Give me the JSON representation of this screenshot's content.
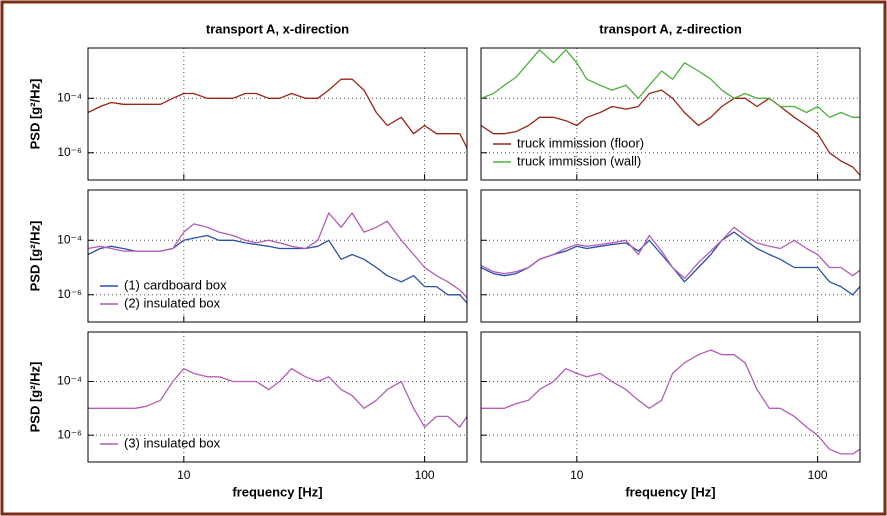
{
  "chart_data": [
    {
      "type": "line",
      "title": "transport A, x-direction",
      "ylabel": "PSD [g²/Hz]",
      "log": true,
      "grid": true,
      "x": [
        4,
        4.5,
        5,
        5.6,
        6.3,
        7,
        8,
        9,
        10,
        11,
        12.5,
        14,
        16,
        18,
        20,
        22.5,
        25,
        28,
        32,
        36,
        40,
        45,
        50,
        56,
        63,
        70,
        80,
        90,
        100,
        112,
        125,
        140,
        150
      ],
      "series": [
        {
          "color": "#9b2418",
          "values": [
            3e-05,
            5e-05,
            7e-05,
            6e-05,
            6e-05,
            6e-05,
            6e-05,
            0.0001,
            0.00015,
            0.00015,
            0.0001,
            0.0001,
            0.0001,
            0.00015,
            0.00015,
            0.0001,
            0.0001,
            0.00015,
            0.0001,
            0.0001,
            0.0002,
            0.0005,
            0.0005,
            0.0002,
            3e-05,
            1e-05,
            2e-05,
            5e-06,
            1e-05,
            5e-06,
            5e-06,
            5e-06,
            1.5e-06
          ]
        }
      ],
      "xlim": [
        4,
        150
      ],
      "ylim": [
        1e-07,
        0.007
      ],
      "xticks": [
        10,
        100
      ],
      "yticks": [
        {
          "value": 0.0001,
          "label": "10⁻⁴"
        },
        {
          "value": 1e-06,
          "label": "10⁻⁶"
        }
      ]
    },
    {
      "type": "line",
      "title": "transport A, z-direction",
      "log": true,
      "grid": true,
      "legend": "lower left",
      "x": [
        4,
        4.5,
        5,
        5.6,
        6.3,
        7,
        8,
        9,
        10,
        11,
        12.5,
        14,
        16,
        18,
        20,
        22.5,
        25,
        28,
        32,
        36,
        40,
        45,
        50,
        56,
        63,
        70,
        80,
        90,
        100,
        112,
        125,
        140,
        150
      ],
      "series": [
        {
          "name": "truck immission (floor)",
          "color": "#9b2418",
          "values": [
            1e-05,
            5e-06,
            5e-06,
            6e-06,
            1e-05,
            2e-05,
            2e-05,
            1.5e-05,
            1e-05,
            2e-05,
            3e-05,
            5e-05,
            4e-05,
            5e-05,
            0.00015,
            0.0002,
            0.0001,
            3e-05,
            1e-05,
            2e-05,
            5e-05,
            0.0001,
            0.0001,
            5e-05,
            0.0001,
            5e-05,
            2e-05,
            1e-05,
            5e-06,
            1e-06,
            5e-07,
            3e-07,
            1.5e-07
          ]
        },
        {
          "name": "truck immission (wall)",
          "color": "#4caf3a",
          "values": [
            0.0001,
            0.00015,
            0.0003,
            0.0006,
            0.002,
            0.006,
            0.002,
            0.006,
            0.002,
            0.0005,
            0.0003,
            0.0002,
            0.0003,
            0.0001,
            0.0003,
            0.001,
            0.0005,
            0.002,
            0.001,
            0.0005,
            0.0002,
            0.0001,
            0.00015,
            0.0001,
            0.0001,
            5e-05,
            5e-05,
            3e-05,
            5e-05,
            2e-05,
            3e-05,
            2e-05,
            2e-05
          ]
        }
      ],
      "xlim": [
        4,
        150
      ],
      "ylim": [
        1e-07,
        0.007
      ],
      "xticks": [
        10,
        100
      ],
      "yticks": [
        0.0001,
        1e-06
      ]
    },
    {
      "type": "line",
      "ylabel": "PSD [g²/Hz]",
      "log": true,
      "grid": true,
      "legend": "lower left",
      "x": [
        4,
        4.5,
        5,
        5.6,
        6.3,
        7,
        8,
        9,
        10,
        11,
        12.5,
        14,
        16,
        18,
        20,
        22.5,
        25,
        28,
        32,
        36,
        40,
        45,
        50,
        56,
        63,
        70,
        80,
        90,
        100,
        112,
        125,
        140,
        150
      ],
      "series": [
        {
          "name": "(1) cardboard box",
          "color": "#2a4fa8",
          "values": [
            3e-05,
            5e-05,
            6e-05,
            5e-05,
            4e-05,
            4e-05,
            4e-05,
            5e-05,
            0.0001,
            0.00012,
            0.00015,
            0.0001,
            0.0001,
            8e-05,
            7e-05,
            6e-05,
            5e-05,
            5e-05,
            5e-05,
            6e-05,
            0.0001,
            2e-05,
            3e-05,
            2e-05,
            1e-05,
            5e-06,
            3e-06,
            5e-06,
            2e-06,
            2e-06,
            1e-06,
            1e-06,
            5e-07
          ]
        },
        {
          "name": "(2) insulated box",
          "color": "#b45cb6",
          "values": [
            5e-05,
            6e-05,
            5e-05,
            4e-05,
            4e-05,
            4e-05,
            4e-05,
            5e-05,
            0.0002,
            0.0004,
            0.0003,
            0.0002,
            0.00015,
            0.0001,
            8e-05,
            0.0001,
            8e-05,
            6e-05,
            5e-05,
            0.0001,
            0.001,
            0.0003,
            0.001,
            0.0002,
            0.0003,
            0.0005,
            0.0001,
            3e-05,
            1e-05,
            5e-06,
            3e-06,
            1.5e-06,
            8e-07
          ]
        }
      ],
      "xlim": [
        4,
        150
      ],
      "ylim": [
        1e-07,
        0.007
      ],
      "xticks": [
        10,
        100
      ],
      "yticks": [
        {
          "value": 0.0001,
          "label": "10⁻⁴"
        },
        {
          "value": 1e-06,
          "label": "10⁻⁶"
        }
      ]
    },
    {
      "type": "line",
      "log": true,
      "grid": true,
      "x": [
        4,
        4.5,
        5,
        5.6,
        6.3,
        7,
        8,
        9,
        10,
        11,
        12.5,
        14,
        16,
        18,
        20,
        22.5,
        25,
        28,
        32,
        36,
        40,
        45,
        50,
        56,
        63,
        70,
        80,
        90,
        100,
        112,
        125,
        140,
        150
      ],
      "series": [
        {
          "color": "#2a4fa8",
          "values": [
            1e-05,
            6e-06,
            5e-06,
            6e-06,
            1e-05,
            2e-05,
            3e-05,
            4e-05,
            6e-05,
            5e-05,
            6e-05,
            7e-05,
            8e-05,
            4e-05,
            0.0001,
            3e-05,
            1e-05,
            3e-06,
            1e-05,
            3e-05,
            0.0001,
            0.0002,
            0.0001,
            5e-05,
            3e-05,
            2e-05,
            1e-05,
            1e-05,
            1e-05,
            3e-06,
            2e-06,
            1e-06,
            2e-06
          ]
        },
        {
          "color": "#b45cb6",
          "values": [
            1.2e-05,
            7e-06,
            6e-06,
            7e-06,
            1e-05,
            2e-05,
            3e-05,
            5e-05,
            7e-05,
            6e-05,
            7e-05,
            8e-05,
            0.0001,
            3e-05,
            0.00015,
            4e-05,
            1e-05,
            4e-06,
            1.5e-05,
            4e-05,
            0.0001,
            0.0003,
            0.00015,
            8e-05,
            6e-05,
            5e-05,
            0.0001,
            5e-05,
            3e-05,
            1e-05,
            1e-05,
            5e-06,
            8e-06
          ]
        }
      ],
      "xlim": [
        4,
        150
      ],
      "ylim": [
        1e-07,
        0.007
      ],
      "xticks": [
        10,
        100
      ],
      "yticks": [
        0.0001,
        1e-06
      ]
    },
    {
      "type": "line",
      "ylabel": "PSD [g²/Hz]",
      "xlabel": "frequency [Hz]",
      "log": true,
      "grid": true,
      "legend": "lower left",
      "x": [
        4,
        4.5,
        5,
        5.6,
        6.3,
        7,
        8,
        9,
        10,
        11,
        12.5,
        14,
        16,
        18,
        20,
        22.5,
        25,
        28,
        32,
        36,
        40,
        45,
        50,
        56,
        63,
        70,
        80,
        90,
        100,
        112,
        125,
        140,
        150
      ],
      "series": [
        {
          "name": "(3) insulated box",
          "color": "#b45cb6",
          "values": [
            1e-05,
            1e-05,
            1e-05,
            1e-05,
            1e-05,
            1.2e-05,
            2e-05,
            0.0001,
            0.0003,
            0.0002,
            0.00015,
            0.00015,
            0.0001,
            0.0001,
            0.0001,
            5e-05,
            0.0001,
            0.0003,
            0.00015,
            0.0001,
            0.00015,
            5e-05,
            3e-05,
            1e-05,
            2e-05,
            5e-05,
            0.0001,
            1e-05,
            2e-06,
            5e-06,
            5e-06,
            2e-06,
            5e-06
          ]
        }
      ],
      "xlim": [
        4,
        150
      ],
      "ylim": [
        1e-07,
        0.007
      ],
      "xticks": [
        10,
        100
      ],
      "yticks": [
        {
          "value": 0.0001,
          "label": "10⁻⁴"
        },
        {
          "value": 1e-06,
          "label": "10⁻⁶"
        }
      ]
    },
    {
      "type": "line",
      "xlabel": "frequency [Hz]",
      "log": true,
      "grid": true,
      "x": [
        4,
        4.5,
        5,
        5.6,
        6.3,
        7,
        8,
        9,
        10,
        11,
        12.5,
        14,
        16,
        18,
        20,
        22.5,
        25,
        28,
        32,
        36,
        40,
        45,
        50,
        56,
        63,
        70,
        80,
        90,
        100,
        112,
        125,
        140,
        150
      ],
      "series": [
        {
          "color": "#b45cb6",
          "values": [
            1e-05,
            1e-05,
            1e-05,
            1.5e-05,
            2e-05,
            5e-05,
            0.0001,
            0.0003,
            0.0002,
            0.00015,
            0.0002,
            0.0001,
            5e-05,
            2e-05,
            1e-05,
            2e-05,
            0.0002,
            0.0005,
            0.001,
            0.0015,
            0.001,
            0.001,
            0.0005,
            5e-05,
            1e-05,
            1e-05,
            5e-06,
            2e-06,
            1e-06,
            3e-07,
            2e-07,
            2e-07,
            3e-07
          ]
        }
      ],
      "xlim": [
        4,
        150
      ],
      "ylim": [
        1e-07,
        0.007
      ],
      "xticks": [
        10,
        100
      ],
      "yticks": [
        0.0001,
        1e-06
      ]
    }
  ]
}
